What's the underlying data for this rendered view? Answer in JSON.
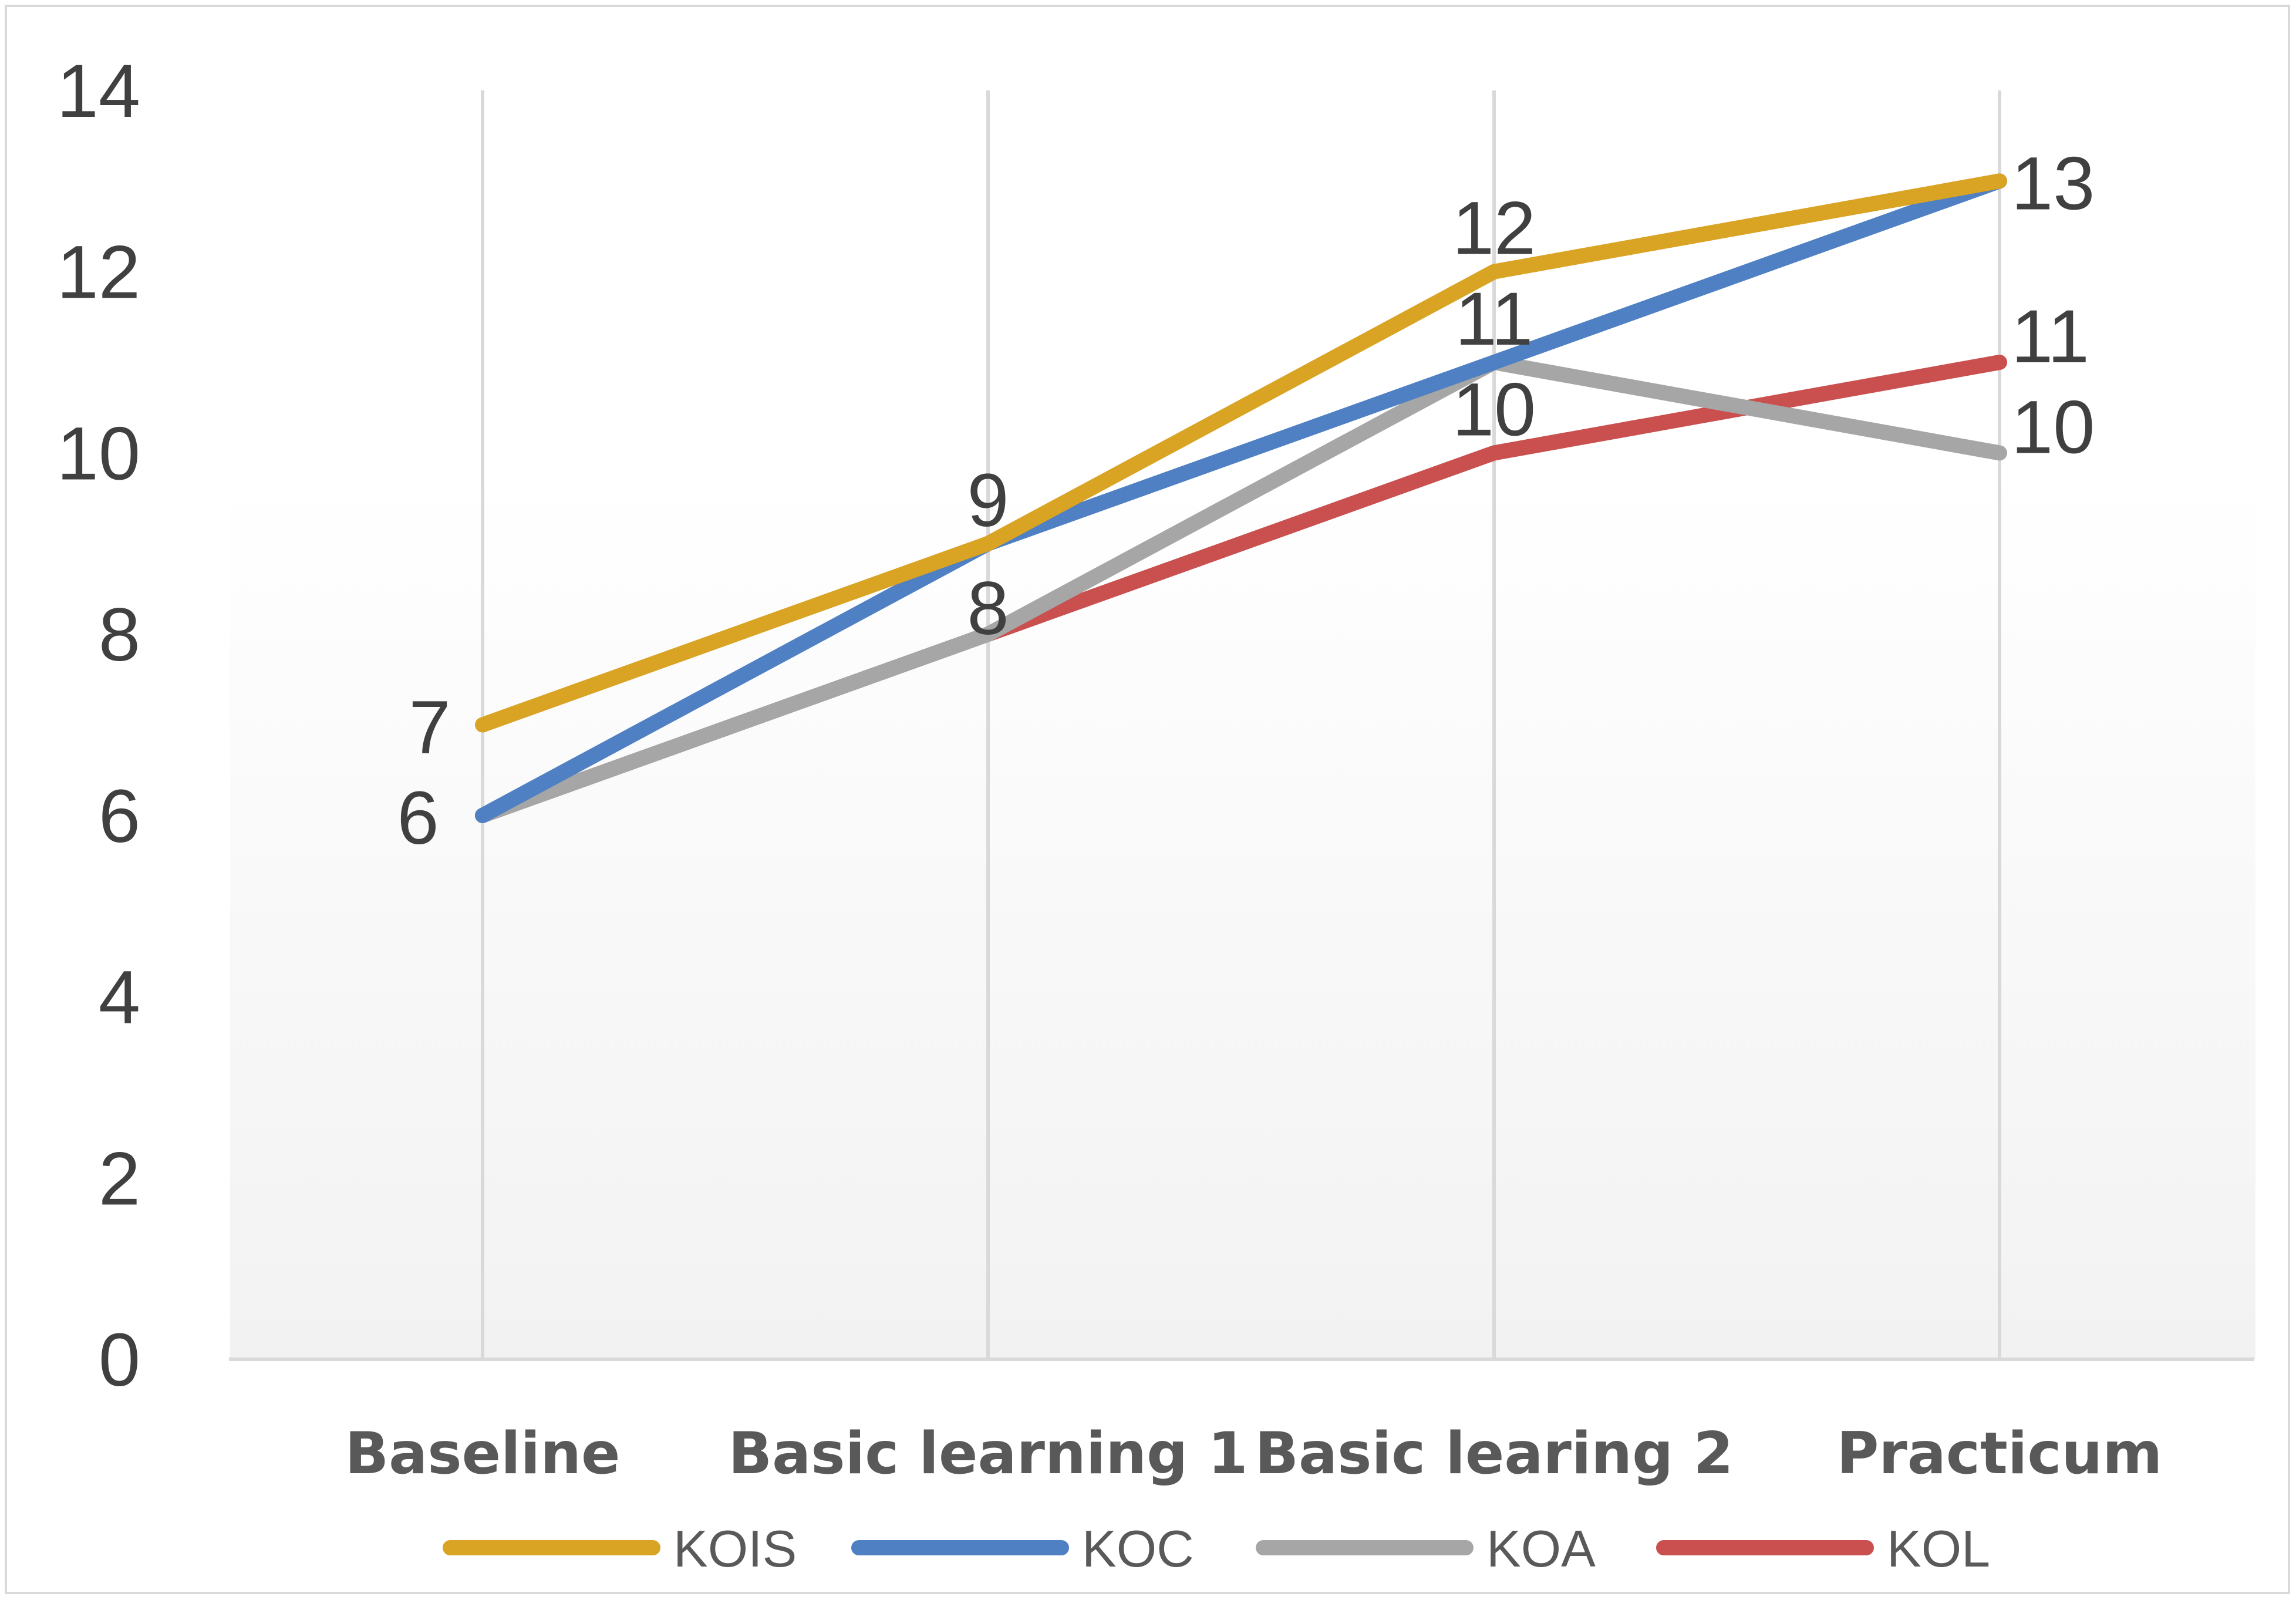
{
  "chart_data": {
    "type": "line",
    "title": "",
    "xlabel": "",
    "ylabel": "",
    "categories": [
      "Baseline",
      "Basic learning 1",
      "Basic learing 2",
      "Practicum"
    ],
    "ylim": [
      0,
      14
    ],
    "yticks": [
      0,
      2,
      4,
      6,
      8,
      10,
      12,
      14
    ],
    "grid": "vertical",
    "legend": "bottom",
    "series": [
      {
        "name": "KOIS",
        "color": "#d9a323",
        "values": [
          7,
          9,
          12,
          13
        ]
      },
      {
        "name": "KOC",
        "color": "#4f80c3",
        "values": [
          6,
          9,
          11,
          13
        ]
      },
      {
        "name": "KOA",
        "color": "#a6a6a6",
        "values": [
          6,
          8,
          11,
          10
        ]
      },
      {
        "name": "KOL",
        "color": "#c9504f",
        "values": [
          6,
          8,
          10,
          11
        ]
      }
    ],
    "data_labels": [
      {
        "category": 0,
        "text": "7"
      },
      {
        "category": 0,
        "text": "6"
      },
      {
        "category": 1,
        "text": "9"
      },
      {
        "category": 1,
        "text": "8"
      },
      {
        "category": 2,
        "text": "12"
      },
      {
        "category": 2,
        "text": "11"
      },
      {
        "category": 2,
        "text": "10"
      },
      {
        "category": 3,
        "text": "13"
      },
      {
        "category": 3,
        "text": "11"
      },
      {
        "category": 3,
        "text": "10"
      }
    ]
  }
}
